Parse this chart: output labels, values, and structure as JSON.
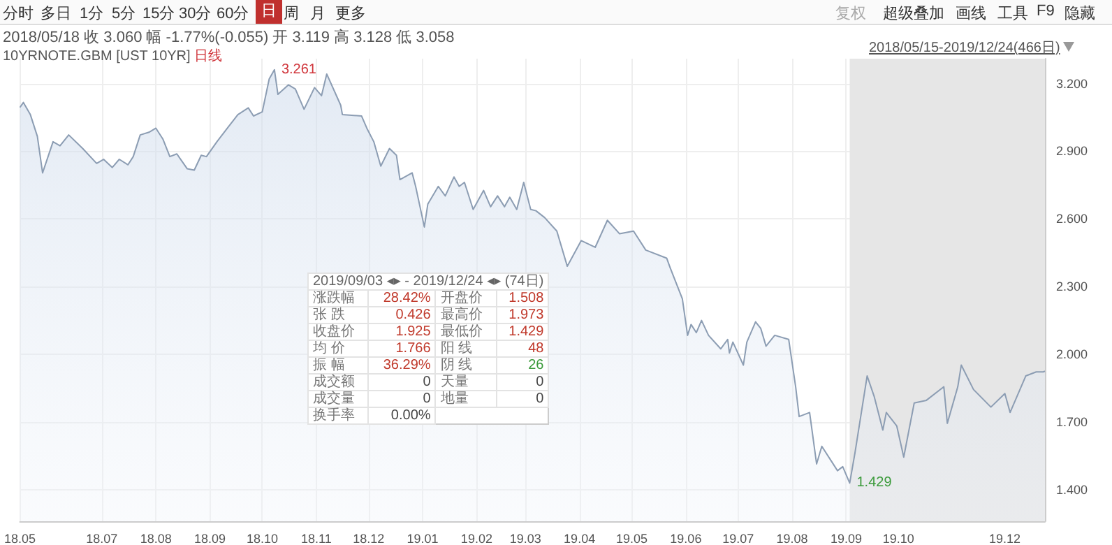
{
  "chart_data": {
    "type": "area",
    "title": "10YRNOTE.GBM [UST 10YR]",
    "subtitle": "日线",
    "x": [
      "2018-05-15",
      "2018-05-17",
      "2018-05-21",
      "2018-05-25",
      "2018-05-28",
      "2018-06-03",
      "2018-06-07",
      "2018-06-12",
      "2018-06-20",
      "2018-06-28",
      "2018-07-02",
      "2018-07-07",
      "2018-07-11",
      "2018-07-16",
      "2018-07-19",
      "2018-07-23",
      "2018-07-28",
      "2018-08-01",
      "2018-08-05",
      "2018-08-09",
      "2018-08-13",
      "2018-08-19",
      "2018-08-23",
      "2018-08-27",
      "2018-08-30",
      "2018-09-05",
      "2018-09-11",
      "2018-09-17",
      "2018-09-23",
      "2018-09-26",
      "2018-10-01",
      "2018-10-05",
      "2018-10-08",
      "2018-10-10",
      "2018-10-16",
      "2018-10-20",
      "2018-10-25",
      "2018-10-31",
      "2018-11-04",
      "2018-11-07",
      "2018-11-15",
      "2018-11-16",
      "2018-11-27",
      "2018-11-30",
      "2018-12-04",
      "2018-12-08",
      "2018-12-13",
      "2018-12-17",
      "2018-12-19",
      "2018-12-26",
      "2018-12-28",
      "2019-01-02",
      "2019-01-04",
      "2019-01-10",
      "2019-01-14",
      "2019-01-19",
      "2019-01-22",
      "2019-01-25",
      "2019-01-30",
      "2019-02-05",
      "2019-02-09",
      "2019-02-13",
      "2019-02-17",
      "2019-02-20",
      "2019-02-24",
      "2019-02-28",
      "2019-03-04",
      "2019-03-07",
      "2019-03-12",
      "2019-03-19",
      "2019-03-25",
      "2019-04-02",
      "2019-04-10",
      "2019-04-17",
      "2019-04-24",
      "2019-05-02",
      "2019-05-09",
      "2019-05-21",
      "2019-05-23",
      "2019-05-30",
      "2019-06-02",
      "2019-06-04",
      "2019-06-07",
      "2019-06-10",
      "2019-06-14",
      "2019-06-21",
      "2019-06-25",
      "2019-06-26",
      "2019-06-28",
      "2019-07-04",
      "2019-07-06",
      "2019-07-11",
      "2019-07-14",
      "2019-07-17",
      "2019-07-22",
      "2019-07-30",
      "2019-08-03",
      "2019-08-05",
      "2019-08-11",
      "2019-08-15",
      "2019-08-18",
      "2019-08-23",
      "2019-08-27",
      "2019-08-30",
      "2019-09-03",
      "2019-09-06",
      "2019-09-13",
      "2019-09-17",
      "2019-09-22",
      "2019-09-24",
      "2019-09-30",
      "2019-10-04",
      "2019-10-10",
      "2019-10-17",
      "2019-10-27",
      "2019-10-29",
      "2019-11-04",
      "2019-11-06",
      "2019-11-13",
      "2019-11-23",
      "2019-12-01",
      "2019-12-04",
      "2019-12-13",
      "2019-12-19",
      "2019-12-23",
      "2019-12-24"
    ],
    "series": [
      {
        "color": "#8c9db3",
        "values": [
          3.094,
          3.116,
          3.062,
          2.966,
          2.804,
          2.942,
          2.924,
          2.972,
          2.912,
          2.846,
          2.864,
          2.828,
          2.864,
          2.84,
          2.876,
          2.972,
          2.984,
          3.002,
          2.954,
          2.876,
          2.888,
          2.822,
          2.816,
          2.882,
          2.876,
          2.942,
          3.002,
          3.062,
          3.092,
          3.056,
          3.074,
          3.22,
          3.261,
          3.152,
          3.194,
          3.176,
          3.086,
          3.182,
          3.146,
          3.242,
          3.104,
          3.062,
          3.056,
          3.002,
          2.942,
          2.834,
          2.912,
          2.882,
          2.774,
          2.804,
          2.744,
          2.564,
          2.666,
          2.744,
          2.702,
          2.786,
          2.744,
          2.762,
          2.642,
          2.726,
          2.654,
          2.702,
          2.654,
          2.696,
          2.642,
          2.762,
          2.642,
          2.636,
          2.606,
          2.546,
          2.39,
          2.504,
          2.474,
          2.594,
          2.534,
          2.546,
          2.462,
          2.426,
          2.384,
          2.246,
          2.084,
          2.132,
          2.096,
          2.15,
          2.084,
          2.024,
          2.066,
          2.006,
          2.054,
          1.952,
          2.054,
          2.144,
          2.114,
          2.036,
          2.084,
          2.066,
          1.856,
          1.724,
          1.742,
          1.514,
          1.592,
          1.532,
          1.484,
          1.502,
          1.429,
          1.562,
          1.904,
          1.814,
          1.664,
          1.742,
          1.682,
          1.544,
          1.784,
          1.796,
          1.856,
          1.694,
          1.856,
          1.952,
          1.844,
          1.766,
          1.826,
          1.742,
          1.904,
          1.922,
          1.922,
          1.925
        ]
      }
    ],
    "xlim": [
      "2018-05-15",
      "2019-12-24"
    ],
    "xticks": [
      {
        "value": "2018-05-15",
        "label": "18.05"
      },
      {
        "value": "2018-07-01",
        "label": "18.07"
      },
      {
        "value": "2018-08-01",
        "label": "18.08"
      },
      {
        "value": "2018-09-01",
        "label": "18.09"
      },
      {
        "value": "2018-10-01",
        "label": "18.10"
      },
      {
        "value": "2018-11-01",
        "label": "18.11"
      },
      {
        "value": "2018-12-01",
        "label": "18.12"
      },
      {
        "value": "2019-01-01",
        "label": "19.01"
      },
      {
        "value": "2019-02-01",
        "label": "19.02"
      },
      {
        "value": "2019-03-01",
        "label": "19.03"
      },
      {
        "value": "2019-04-01",
        "label": "19.04"
      },
      {
        "value": "2019-05-01",
        "label": "19.05"
      },
      {
        "value": "2019-06-01",
        "label": "19.06"
      },
      {
        "value": "2019-07-01",
        "label": "19.07"
      },
      {
        "value": "2019-08-01",
        "label": "19.08"
      },
      {
        "value": "2019-09-01",
        "label": "19.09"
      },
      {
        "value": "2019-10-01",
        "label": "19.10"
      },
      {
        "value": "2019-12-01",
        "label": "19.12"
      }
    ],
    "ylim": [
      1.26,
      3.31
    ],
    "yticks": [
      {
        "value": 1.4,
        "label": "1.400"
      },
      {
        "value": 1.7,
        "label": "1.700"
      },
      {
        "value": 2.0,
        "label": "2.000"
      },
      {
        "value": 2.3,
        "label": "2.300"
      },
      {
        "value": 2.6,
        "label": "2.600"
      },
      {
        "value": 2.9,
        "label": "2.900"
      },
      {
        "value": 3.2,
        "label": "3.200"
      }
    ],
    "grid": true,
    "marker": "none",
    "bands": [
      {
        "axis": "x",
        "from": "2019-09-03",
        "to": "2019-12-24",
        "color": "#e6e6e6"
      }
    ],
    "annotations": [
      "分时",
      "多日",
      "1分",
      "5分",
      "15分",
      "30分",
      "60分",
      "日",
      "周",
      "月",
      "更多",
      "复权",
      "超级叠加",
      "画线",
      "工具",
      "F9",
      "隐藏",
      "2018/05/18 收 3.060 幅 -1.77%(-0.055) 开 3.119 高 3.128 低 3.058",
      "2018/05/15-2019/12/24(466日)",
      "2019/09/03 ◂▸ - 2019/12/24 ◂▸ (74日)",
      "涨跌幅",
      "28.42%",
      "开盘价",
      "1.508",
      "张 跌",
      "0.426",
      "最高价",
      "1.973",
      "收盘价",
      "1.925",
      "最低价",
      "1.429",
      "均 价",
      "1.766",
      "阳 线",
      "48",
      "振 幅",
      "36.29%",
      "阴 线",
      "26",
      "成交额",
      "0",
      "天量",
      "0",
      "成交量",
      "0",
      "地量",
      "0",
      "换手率",
      "0.00%",
      {
        "text": "3.261",
        "x": "2018-10-08",
        "y": 3.261
      },
      {
        "text": "1.429",
        "x": "2019-09-03",
        "y": 1.429
      }
    ]
  }
}
